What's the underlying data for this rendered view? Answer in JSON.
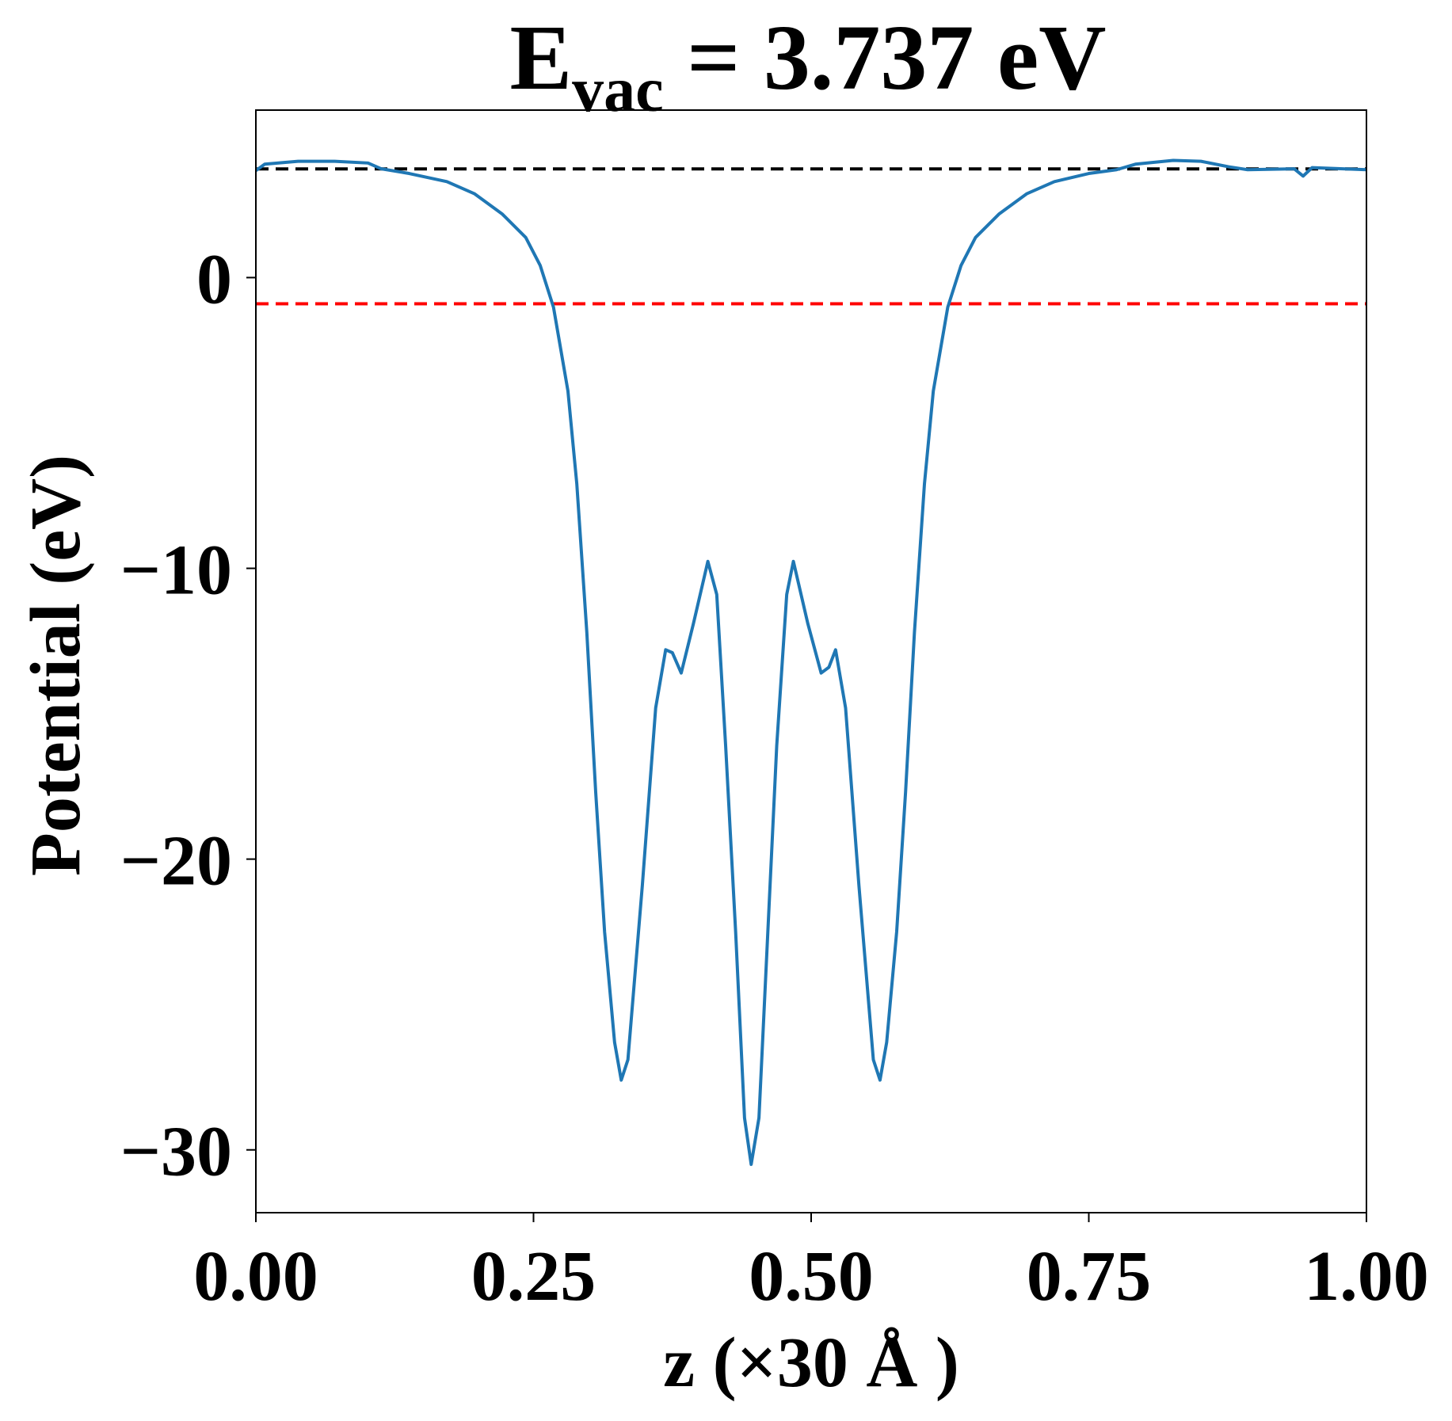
{
  "chart_data": {
    "type": "line",
    "title": {
      "main": "E",
      "sub": "vac",
      "rest": " = 3.737 eV"
    },
    "xlabel": "z (×30 Å )",
    "ylabel": "Potential (eV)",
    "xlim": [
      0,
      1
    ],
    "ylim": [
      -32.16,
      5.76
    ],
    "xticks": [
      {
        "value": 0,
        "label": "0.00"
      },
      {
        "value": 0.25,
        "label": "0.25"
      },
      {
        "value": 0.5,
        "label": "0.50"
      },
      {
        "value": 0.75,
        "label": "0.75"
      },
      {
        "value": 1,
        "label": "1.00"
      }
    ],
    "yticks": [
      {
        "value": 0,
        "label": "0"
      },
      {
        "value": -10,
        "label": "−10"
      },
      {
        "value": -20,
        "label": "−20"
      },
      {
        "value": -30,
        "label": "−30"
      }
    ],
    "hlines": [
      {
        "y": 3.737,
        "color": "#000000"
      },
      {
        "y": -0.9,
        "color": "#ff0000"
      }
    ],
    "series": [
      {
        "color": "#1f77b4",
        "x": [
          0,
          0.008,
          0.038,
          0.071,
          0.101,
          0.113,
          0.138,
          0.172,
          0.197,
          0.222,
          0.243,
          0.256,
          0.268,
          0.281,
          0.289,
          0.298,
          0.306,
          0.314,
          0.323,
          0.329,
          0.335,
          0.348,
          0.36,
          0.369,
          0.375,
          0.383,
          0.394,
          0.407,
          0.415,
          0.423,
          0.432,
          0.44,
          0.446,
          0.453,
          0.461,
          0.469,
          0.478,
          0.484,
          0.497,
          0.509,
          0.516,
          0.522,
          0.531,
          0.543,
          0.556,
          0.562,
          0.568,
          0.577,
          0.585,
          0.593,
          0.602,
          0.61,
          0.623,
          0.635,
          0.648,
          0.669,
          0.694,
          0.719,
          0.75,
          0.775,
          0.792,
          0.826,
          0.851,
          0.876,
          0.893,
          0.935,
          0.943,
          0.951,
          1
        ],
        "values": [
          3.68,
          3.9,
          4.0,
          4.0,
          3.94,
          3.74,
          3.58,
          3.3,
          2.88,
          2.18,
          1.38,
          0.42,
          -1.02,
          -3.9,
          -7.1,
          -12.2,
          -17.7,
          -22.5,
          -26.3,
          -27.6,
          -26.9,
          -20.9,
          -14.8,
          -12.8,
          -12.9,
          -13.6,
          -11.9,
          -9.76,
          -10.9,
          -16.1,
          -22.5,
          -28.9,
          -30.5,
          -28.9,
          -22.5,
          -16.1,
          -10.9,
          -9.76,
          -11.9,
          -13.6,
          -13.4,
          -12.8,
          -14.8,
          -20.9,
          -26.9,
          -27.6,
          -26.3,
          -22.5,
          -17.7,
          -12.2,
          -7.1,
          -3.9,
          -1.02,
          0.42,
          1.38,
          2.18,
          2.88,
          3.3,
          3.58,
          3.71,
          3.9,
          4.03,
          4.0,
          3.81,
          3.71,
          3.74,
          3.49,
          3.78,
          3.71
        ]
      }
    ]
  }
}
